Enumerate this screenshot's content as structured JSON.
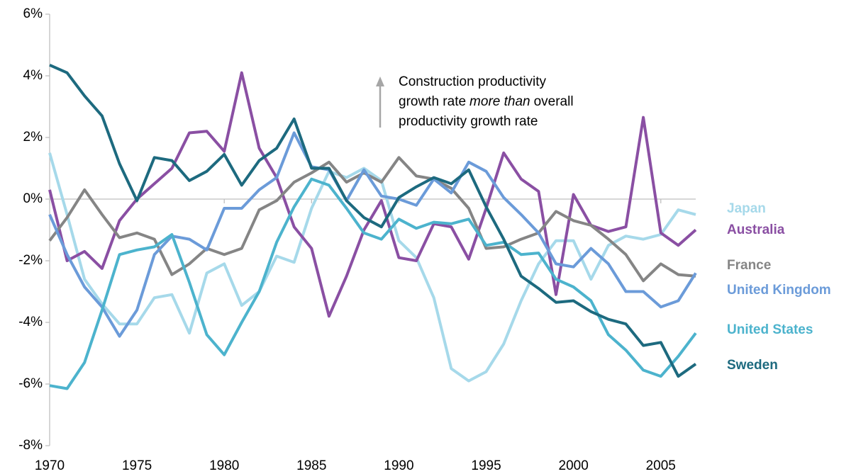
{
  "chart_data": {
    "type": "line",
    "annotation": [
      "Construction productivity",
      "growth rate",
      "more than",
      "overall",
      "productivity growth rate"
    ],
    "x": [
      1970,
      1971,
      1972,
      1973,
      1974,
      1975,
      1976,
      1977,
      1978,
      1979,
      1980,
      1981,
      1982,
      1983,
      1984,
      1985,
      1986,
      1987,
      1988,
      1989,
      1990,
      1991,
      1992,
      1993,
      1994,
      1995,
      1996,
      1997,
      1998,
      1999,
      2000,
      2001,
      2002,
      2003,
      2004,
      2005,
      2006,
      2007
    ],
    "xlim": [
      1970,
      2007
    ],
    "xticks": [
      1970,
      1975,
      1980,
      1985,
      1990,
      1995,
      2000,
      2005
    ],
    "ylim": [
      -8,
      6
    ],
    "yticks": [
      {
        "value": 6,
        "label": "6%"
      },
      {
        "value": 4,
        "label": "4%"
      },
      {
        "value": 2,
        "label": "2%"
      },
      {
        "value": 0,
        "label": "0%"
      },
      {
        "value": -2,
        "label": "-2%"
      },
      {
        "value": -4,
        "label": "-4%"
      },
      {
        "value": -6,
        "label": "-6%"
      },
      {
        "value": -8,
        "label": "-8%"
      }
    ],
    "series": [
      {
        "name": "Japan",
        "color": "#a6d9ea",
        "values": [
          1.5,
          -0.5,
          -2.6,
          -3.4,
          -4.05,
          -4.05,
          -3.2,
          -3.1,
          -4.35,
          -2.4,
          -2.1,
          -3.45,
          -3.0,
          -1.85,
          -2.05,
          -0.3,
          0.9,
          0.7,
          1.0,
          0.6,
          -1.35,
          -1.9,
          -3.2,
          -5.5,
          -5.9,
          -5.6,
          -4.7,
          -3.3,
          -2.1,
          -1.35,
          -1.35,
          -2.6,
          -1.5,
          -1.2,
          -1.3,
          -1.15,
          -0.35,
          -0.5
        ]
      },
      {
        "name": "Australia",
        "color": "#8a4fa3",
        "values": [
          0.3,
          -2.0,
          -1.7,
          -2.25,
          -0.7,
          0.0,
          0.5,
          1.0,
          2.15,
          2.2,
          1.55,
          4.1,
          1.65,
          0.7,
          -0.9,
          -1.6,
          -3.8,
          -2.5,
          -1.0,
          -0.05,
          -1.9,
          -2.0,
          -0.8,
          -0.9,
          -1.95,
          -0.3,
          1.5,
          0.65,
          0.25,
          -3.1,
          0.15,
          -0.85,
          -1.05,
          -0.9,
          2.65,
          -1.1,
          -1.5,
          -1.0
        ]
      },
      {
        "name": "France",
        "color": "#858585",
        "values": [
          -1.35,
          -0.6,
          0.3,
          -0.5,
          -1.25,
          -1.1,
          -1.3,
          -2.45,
          -2.1,
          -1.6,
          -1.8,
          -1.6,
          -0.35,
          -0.05,
          0.55,
          0.85,
          1.2,
          0.55,
          0.85,
          0.55,
          1.35,
          0.75,
          0.65,
          0.35,
          -0.3,
          -1.6,
          -1.55,
          -1.3,
          -1.1,
          -0.4,
          -0.7,
          -0.85,
          -1.3,
          -1.8,
          -2.65,
          -2.1,
          -2.45,
          -2.5
        ]
      },
      {
        "name": "United Kingdom",
        "color": "#6b9bd9",
        "values": [
          -0.5,
          -1.8,
          -2.85,
          -3.5,
          -4.45,
          -3.6,
          -1.8,
          -1.2,
          -1.3,
          -1.65,
          -0.3,
          -0.3,
          0.3,
          0.7,
          2.15,
          1.05,
          0.95,
          -0.05,
          0.95,
          0.1,
          0.0,
          -0.2,
          0.65,
          0.2,
          1.2,
          0.9,
          0.05,
          -0.5,
          -1.1,
          -2.1,
          -2.2,
          -1.6,
          -2.1,
          -3.0,
          -3.0,
          -3.5,
          -3.3,
          -2.4
        ]
      },
      {
        "name": "United States",
        "color": "#4cb3cd",
        "values": [
          -6.05,
          -6.15,
          -5.3,
          -3.6,
          -1.8,
          -1.65,
          -1.55,
          -1.15,
          -2.7,
          -4.4,
          -5.05,
          -4.0,
          -3.0,
          -1.4,
          -0.25,
          0.65,
          0.45,
          -0.3,
          -1.1,
          -1.3,
          -0.65,
          -0.95,
          -0.75,
          -0.8,
          -0.65,
          -1.5,
          -1.4,
          -1.8,
          -1.75,
          -2.6,
          -2.85,
          -3.3,
          -4.4,
          -4.9,
          -5.55,
          -5.75,
          -5.1,
          -4.35
        ]
      },
      {
        "name": "Sweden",
        "color": "#1d6a7f",
        "values": [
          4.35,
          4.1,
          3.35,
          2.7,
          1.15,
          -0.05,
          1.35,
          1.25,
          0.6,
          0.9,
          1.45,
          0.45,
          1.25,
          1.65,
          2.6,
          1.0,
          1.0,
          -0.05,
          -0.6,
          -0.9,
          0.05,
          0.4,
          0.7,
          0.5,
          0.95,
          -0.25,
          -1.3,
          -2.5,
          -2.9,
          -3.35,
          -3.3,
          -3.65,
          -3.9,
          -4.05,
          -4.75,
          -4.65,
          -5.75,
          -5.35
        ]
      }
    ]
  }
}
